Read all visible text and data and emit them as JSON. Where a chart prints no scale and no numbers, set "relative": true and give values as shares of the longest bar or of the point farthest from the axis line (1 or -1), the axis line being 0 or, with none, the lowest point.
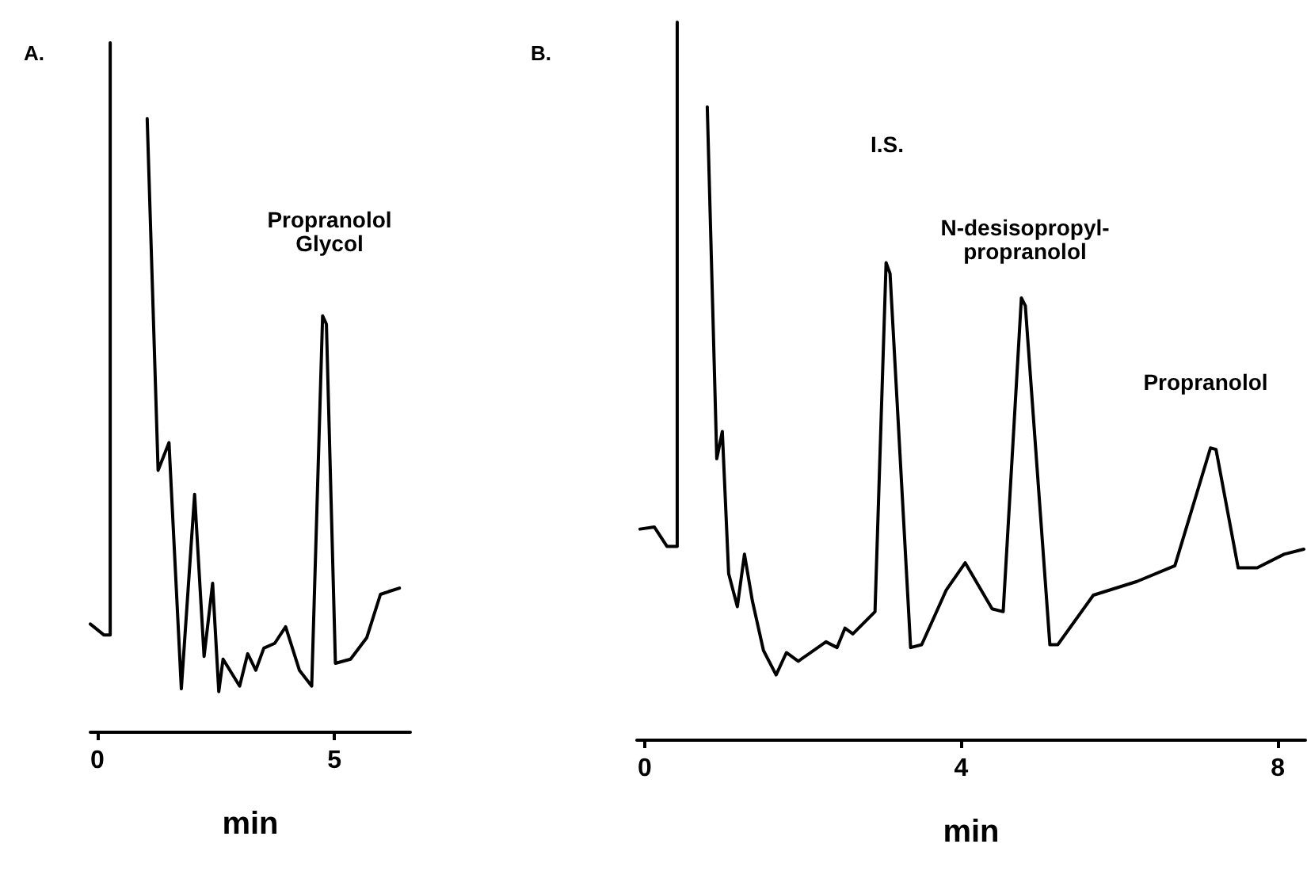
{
  "chart_data": [
    {
      "type": "line",
      "title": "A.",
      "xlabel": "min",
      "relative": true,
      "xlim": [
        -0.15,
        6.6
      ],
      "xticks": [
        0,
        5
      ],
      "marker": "none",
      "line_style": "solid",
      "series": [
        {
          "color": "#000000",
          "x": [
            -0.15,
            0.14,
            0.27,
            0.27
          ],
          "values": [
            0.157,
            0.141,
            0.141,
            1.0
          ]
        },
        {
          "color": "#000000",
          "x": [
            1.05,
            1.28,
            1.51,
            1.77,
            2.05,
            2.25,
            2.43,
            2.56,
            2.65,
            3.0,
            3.17,
            3.34,
            3.51,
            3.74,
            3.97,
            4.26,
            4.52,
            4.75,
            4.83,
            5.02,
            5.34,
            5.68,
            5.97,
            6.14,
            6.37
          ],
          "values": [
            0.89,
            0.38,
            0.42,
            0.063,
            0.345,
            0.11,
            0.216,
            0.059,
            0.106,
            0.067,
            0.114,
            0.09,
            0.122,
            0.129,
            0.153,
            0.09,
            0.067,
            0.604,
            0.592,
            0.1,
            0.106,
            0.137,
            0.2,
            0.204,
            0.209
          ]
        }
      ],
      "annotations": [
        "Propranolol\nGlycol"
      ]
    },
    {
      "type": "line",
      "title": "B.",
      "xlabel": "min",
      "relative": true,
      "xlim": [
        -0.1,
        8.35
      ],
      "xticks": [
        0,
        4,
        8
      ],
      "marker": "none",
      "line_style": "solid",
      "series": [
        {
          "color": "#000000",
          "x": [
            -0.06,
            0.12,
            0.28,
            0.41,
            0.41
          ],
          "values": [
            0.294,
            0.297,
            0.27,
            0.27,
            1.0
          ]
        },
        {
          "color": "#000000",
          "x": [
            0.79,
            0.91,
            0.98,
            1.06,
            1.17,
            1.26,
            1.36,
            1.5,
            1.66,
            1.79,
            1.94,
            2.29,
            2.43,
            2.53,
            2.63,
            2.91,
            3.05,
            3.1,
            3.36,
            3.5,
            3.81,
            4.05,
            4.39,
            4.53,
            4.76,
            4.81,
            5.12,
            5.22,
            5.67,
            6.22,
            6.7,
            7.15,
            7.22,
            7.5,
            7.74,
            8.08,
            8.33
          ],
          "values": [
            0.882,
            0.392,
            0.43,
            0.232,
            0.186,
            0.259,
            0.194,
            0.125,
            0.091,
            0.122,
            0.11,
            0.137,
            0.129,
            0.156,
            0.148,
            0.179,
            0.665,
            0.65,
            0.129,
            0.133,
            0.209,
            0.247,
            0.183,
            0.179,
            0.616,
            0.605,
            0.133,
            0.133,
            0.202,
            0.221,
            0.243,
            0.407,
            0.405,
            0.24,
            0.24,
            0.259,
            0.266
          ]
        }
      ],
      "annotations": [
        "I.S.",
        "N-desisopropyl-\npropranolol",
        "Propranolol"
      ]
    }
  ]
}
